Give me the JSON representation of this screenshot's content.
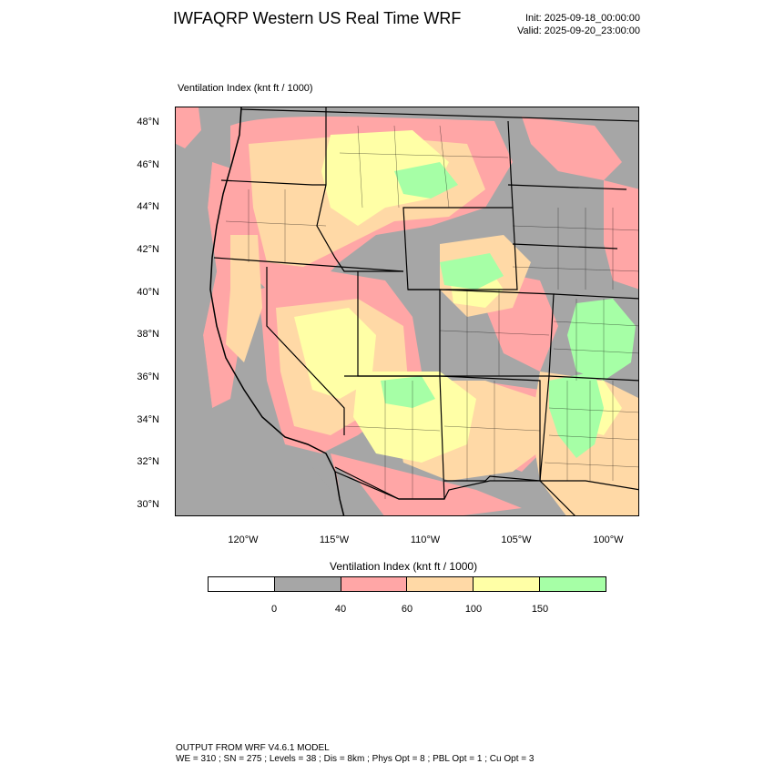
{
  "header": {
    "title": "IWFAQRP Western US Real Time WRF",
    "init": "Init: 2025-09-18_00:00:00",
    "valid": "Valid: 2025-09-20_23:00:00"
  },
  "map": {
    "subtitle": "Ventilation Index   (knt ft / 1000)",
    "lat_labels": [
      "48°N",
      "46°N",
      "44°N",
      "42°N",
      "40°N",
      "38°N",
      "36°N",
      "34°N",
      "32°N",
      "30°N"
    ],
    "lon_labels": [
      "120°W",
      "115°W",
      "110°W",
      "105°W",
      "100°W"
    ]
  },
  "colorbar": {
    "title": "Ventilation Index   (knt ft / 1000)",
    "tick_labels": [
      "0",
      "40",
      "60",
      "100",
      "150"
    ],
    "bins": [
      {
        "label": "below 0",
        "color": "#ffffff"
      },
      {
        "label": "0-40",
        "color": "#a6a6a6"
      },
      {
        "label": "40-60",
        "color": "#ffa6a6"
      },
      {
        "label": "60-100",
        "color": "#ffd9a6"
      },
      {
        "label": "100-150",
        "color": "#ffffa6"
      },
      {
        "label": "150+",
        "color": "#a6ffa6"
      }
    ]
  },
  "footer": {
    "line1": "OUTPUT FROM WRF V4.6.1 MODEL",
    "line2": "WE = 310 ; SN = 275 ; Levels = 38 ; Dis = 8km ; Phys Opt = 8 ; PBL Opt = 1 ; Cu Opt = 3"
  }
}
